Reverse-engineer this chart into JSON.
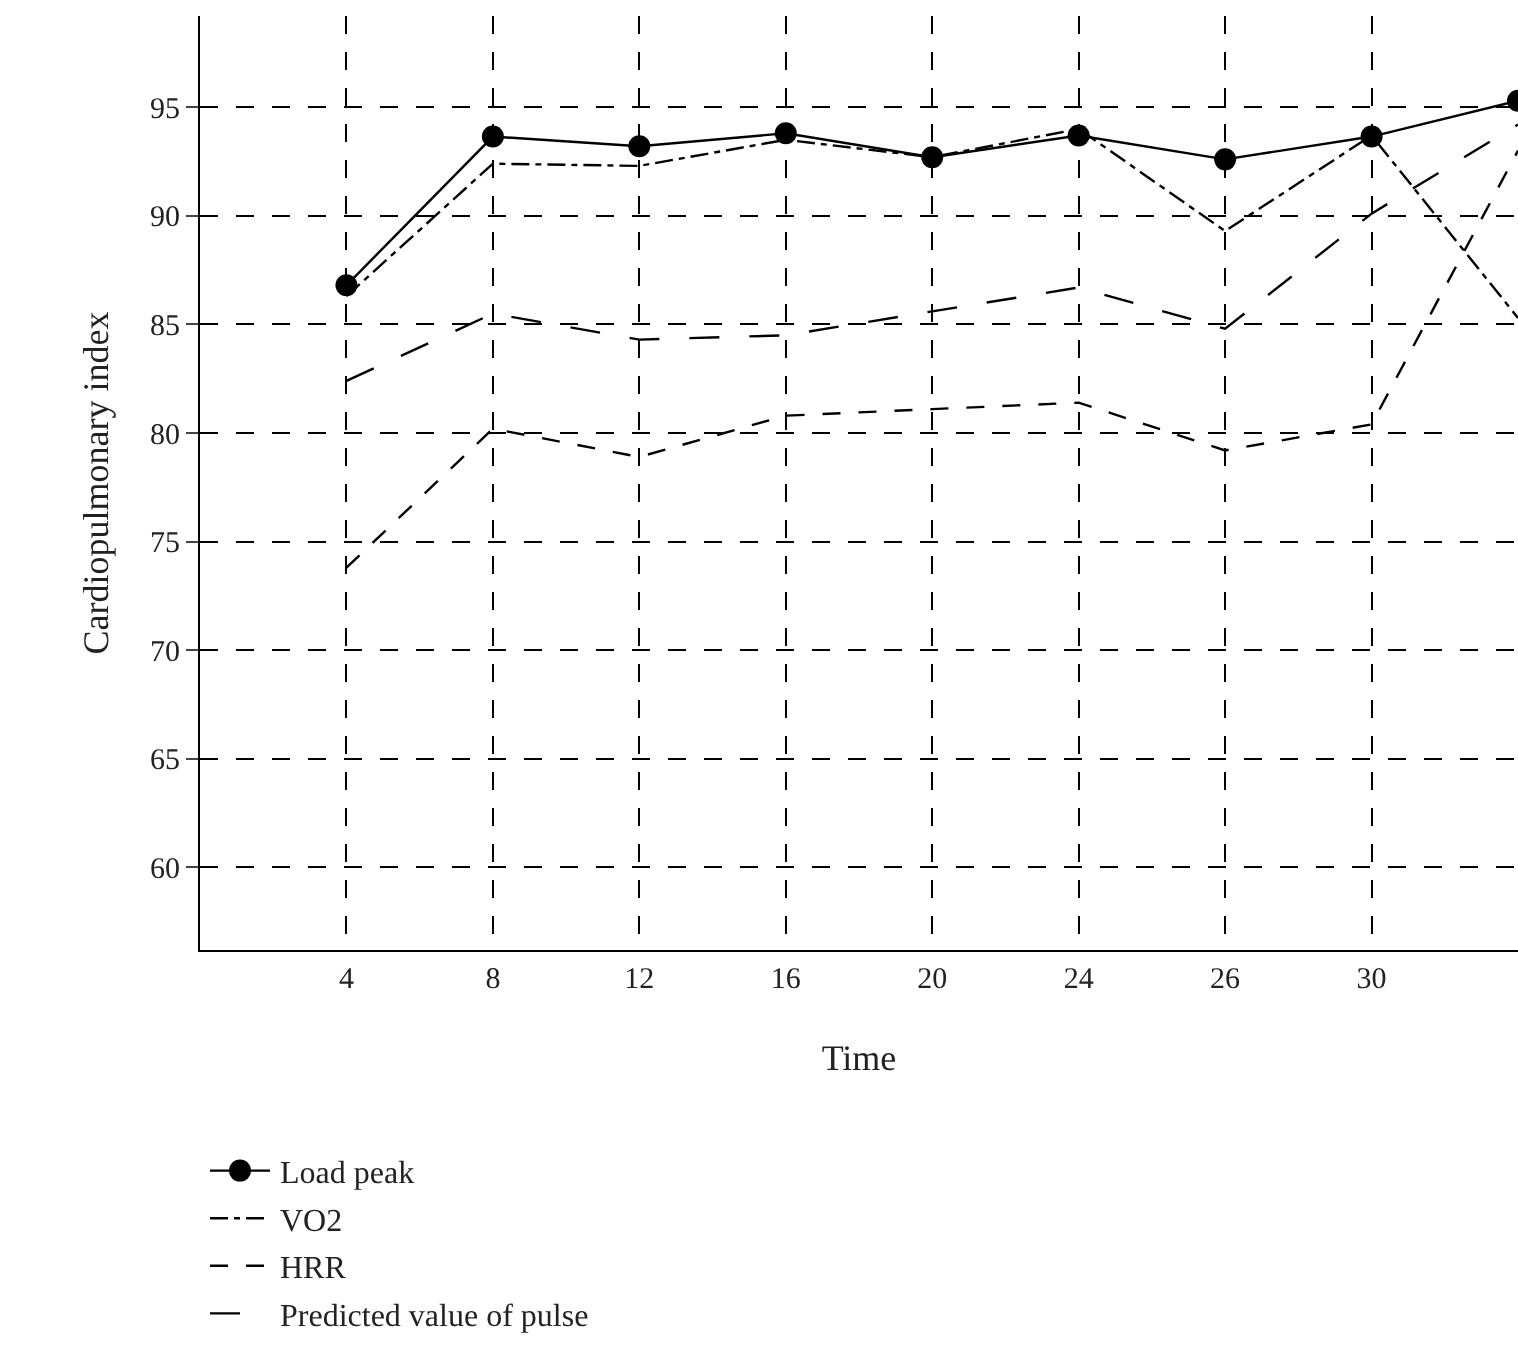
{
  "chart_data": {
    "type": "line",
    "xlabel": "Time",
    "ylabel": "Cardiopulmonary index",
    "categories": [
      "4",
      "8",
      "12",
      "16",
      "20",
      "24",
      "26",
      "30",
      null
    ],
    "series": [
      {
        "name": "Load peak",
        "color": "#000000",
        "line_style": "solid",
        "marker": "circle",
        "values": [
          86.8,
          93.65,
          93.2,
          93.8,
          92.7,
          93.7,
          92.6,
          93.65,
          95.3
        ]
      },
      {
        "name": "VO2",
        "color": "#000000",
        "line_style": "dashdot",
        "marker": "none",
        "values": [
          86.3,
          92.4,
          92.3,
          93.5,
          92.7,
          94.0,
          89.3,
          93.7,
          85.3
        ]
      },
      {
        "name": "HRR",
        "color": "#000000",
        "line_style": "dashed",
        "marker": "none",
        "values": [
          73.8,
          80.2,
          78.9,
          80.8,
          81.1,
          81.4,
          79.2,
          80.4,
          93.0
        ]
      },
      {
        "name": "Predicted value of pulse",
        "color": "#000000",
        "line_style": "longdash",
        "marker": "none",
        "values": [
          82.4,
          85.5,
          84.3,
          84.5,
          85.6,
          86.7,
          84.8,
          90.1,
          94.2
        ]
      }
    ],
    "ylim": [
      56.2,
      99.2
    ],
    "yticks": [
      60,
      65,
      70,
      75,
      80,
      85,
      90,
      95
    ],
    "grid": true,
    "legend": "bottom"
  }
}
